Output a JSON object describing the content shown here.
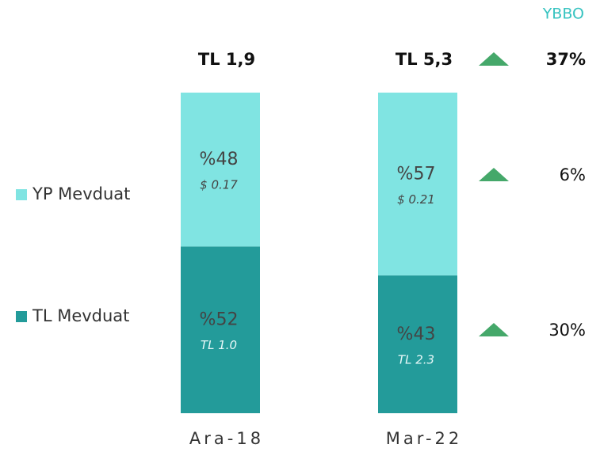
{
  "chart_data": {
    "type": "stacked_bar",
    "categories": [
      "Ara-18",
      "Mar-22"
    ],
    "total_labels": [
      "TL 1,9",
      "TL 5,3"
    ],
    "series": [
      {
        "name": "TL Mevduat",
        "color": "#239b9a",
        "values": [
          52,
          43
        ],
        "value_labels": [
          "%52",
          "%43"
        ],
        "amount_labels": [
          "TL 1.0",
          "TL 2.3"
        ]
      },
      {
        "name": "YP Mevduat",
        "color": "#80e4e2",
        "values": [
          48,
          57
        ],
        "value_labels": [
          "%48",
          "%57"
        ],
        "amount_labels": [
          "$ 0.17",
          "$ 0.21"
        ]
      }
    ],
    "growth": {
      "title": "YBBO",
      "color": "#45a86a",
      "values": [
        37,
        6,
        30
      ],
      "value_labels": [
        "37%",
        "6%",
        "30%"
      ]
    }
  }
}
